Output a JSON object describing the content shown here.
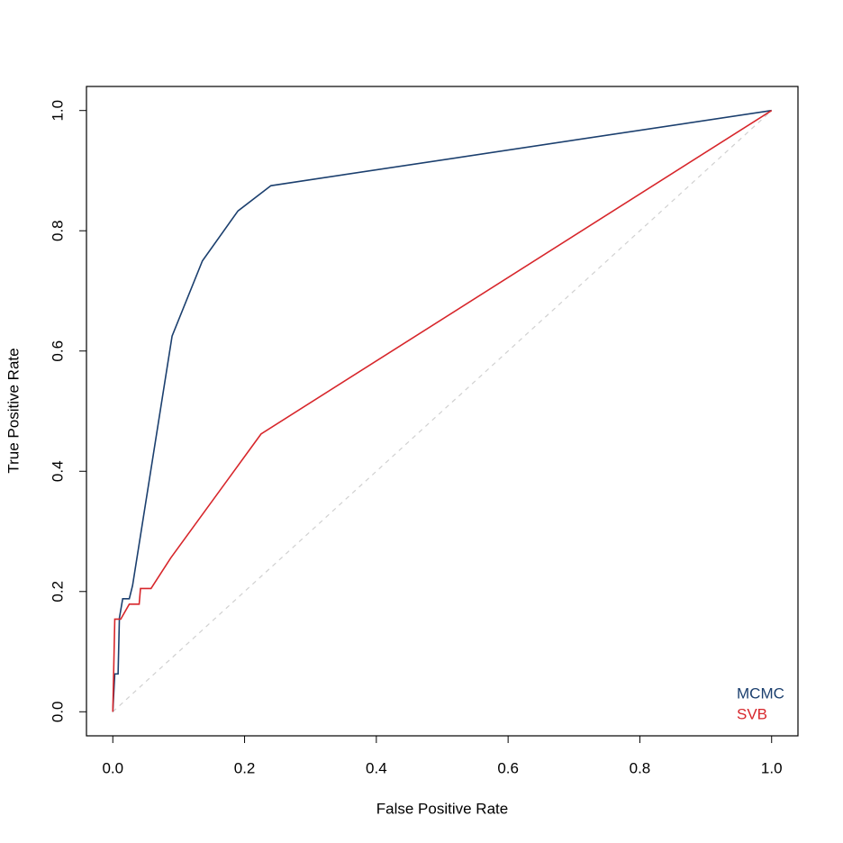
{
  "chart_data": {
    "type": "line",
    "xlabel": "False Positive Rate",
    "ylabel": "True Positive Rate",
    "xlim": [
      -0.04,
      1.04
    ],
    "ylim": [
      -0.04,
      1.04
    ],
    "xticks": [
      {
        "value": 0,
        "label": "0.0"
      },
      0.2,
      0.4,
      0.6,
      0.8,
      {
        "value": 1,
        "label": "1.0"
      }
    ],
    "yticks": [
      {
        "value": 0,
        "label": "0.0"
      },
      0.2,
      0.4,
      0.6,
      0.8,
      {
        "value": 1,
        "label": "1.0"
      }
    ],
    "legend": "bottomright",
    "diagonal": {
      "x": [
        0,
        1
      ],
      "values": [
        0,
        1
      ],
      "color": "#d0d0d0",
      "dashed": true
    },
    "series": [
      {
        "name": "MCMC",
        "color": "#1b3f6e",
        "x": [
          0,
          0.003,
          0.008,
          0.01,
          0.015,
          0.025,
          0.03,
          0.09,
          0.136,
          0.19,
          0.24,
          1
        ],
        "values": [
          0,
          0.063,
          0.063,
          0.156,
          0.188,
          0.188,
          0.21,
          0.625,
          0.75,
          0.833,
          0.875,
          1
        ]
      },
      {
        "name": "SVB",
        "color": "#d7262b",
        "x": [
          0,
          0.003,
          0.012,
          0.025,
          0.04,
          0.042,
          0.058,
          0.088,
          0.225,
          1
        ],
        "values": [
          0,
          0.154,
          0.154,
          0.179,
          0.179,
          0.205,
          0.205,
          0.256,
          0.462,
          1
        ]
      }
    ]
  }
}
